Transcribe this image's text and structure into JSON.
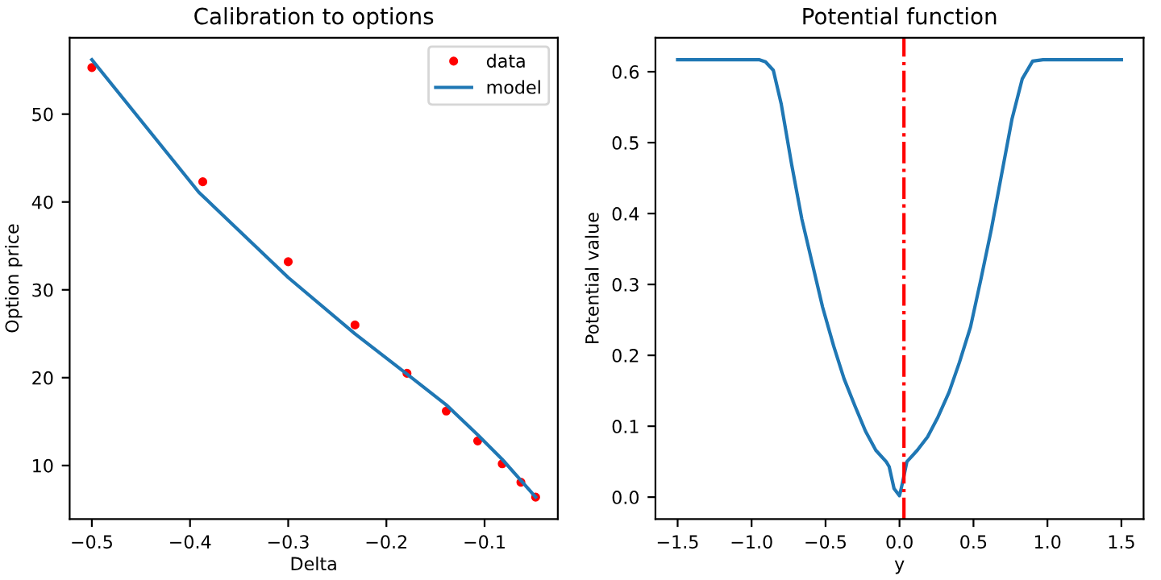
{
  "chart_data": [
    {
      "type": "scatter",
      "title": "Calibration to options",
      "xlabel": "Delta",
      "ylabel": "Option price",
      "xlim": [
        -0.5226,
        -0.0254
      ],
      "ylim": [
        3.9,
        58.7
      ],
      "xticks": [
        {
          "value": -0.5,
          "label": "−0.5"
        },
        {
          "value": -0.4,
          "label": "−0.4"
        },
        {
          "value": -0.3,
          "label": "−0.3"
        },
        {
          "value": -0.2,
          "label": "−0.2"
        },
        {
          "value": -0.1,
          "label": "−0.1"
        }
      ],
      "yticks": [
        10,
        20,
        30,
        40,
        50
      ],
      "legend": "top right",
      "grid": false,
      "series": [
        {
          "name": "data",
          "type": "scatter",
          "color": "#ff0000",
          "marker": "circle",
          "x": [
            -0.5,
            -0.387,
            -0.3,
            -0.232,
            -0.179,
            -0.139,
            -0.107,
            -0.082,
            -0.063,
            -0.048
          ],
          "values": [
            55.3,
            42.3,
            33.2,
            26.0,
            20.5,
            16.2,
            12.8,
            10.2,
            8.1,
            6.4
          ]
        },
        {
          "name": "model",
          "type": "line",
          "color": "#1f77b4",
          "marker": "none",
          "x": [
            -0.5,
            -0.391,
            -0.3,
            -0.232,
            -0.179,
            -0.139,
            -0.107,
            -0.082,
            -0.063,
            -0.048
          ],
          "values": [
            56.2,
            41.1,
            31.4,
            25.0,
            20.4,
            16.9,
            13.5,
            10.7,
            8.3,
            6.4
          ]
        }
      ]
    },
    {
      "type": "line",
      "title": "Potential function",
      "xlabel": "y",
      "ylabel": "Potential value",
      "xlim": [
        -1.65,
        1.65
      ],
      "ylim": [
        -0.031,
        0.648
      ],
      "xticks": [
        {
          "value": -1.5,
          "label": "−1.5"
        },
        {
          "value": -1.0,
          "label": "−1.0"
        },
        {
          "value": -0.5,
          "label": "−0.5"
        },
        {
          "value": 0.0,
          "label": "0.0"
        },
        {
          "value": 0.5,
          "label": "0.5"
        },
        {
          "value": 1.0,
          "label": "1.0"
        },
        {
          "value": 1.5,
          "label": "1.5"
        }
      ],
      "yticks": [
        {
          "value": 0.0,
          "label": "0.0"
        },
        0.1,
        0.2,
        0.3,
        0.4,
        0.5,
        0.6
      ],
      "grid": false,
      "ref_lines": [
        {
          "axis": "x",
          "value": 0.03,
          "color": "#ff0000",
          "line_style": "dashdot"
        }
      ],
      "series": [
        {
          "color": "#1f77b4",
          "x": [
            -1.5,
            -0.95,
            -0.906,
            -0.853,
            -0.8,
            -0.73,
            -0.66,
            -0.59,
            -0.52,
            -0.445,
            -0.375,
            -0.3,
            -0.23,
            -0.16,
            -0.09,
            -0.07,
            -0.037,
            0.0,
            0.02,
            0.05,
            0.12,
            0.19,
            0.26,
            0.335,
            0.405,
            0.48,
            0.55,
            0.62,
            0.69,
            0.76,
            0.83,
            0.9,
            0.97,
            1.5
          ],
          "values": [
            0.617,
            0.617,
            0.614,
            0.602,
            0.555,
            0.47,
            0.392,
            0.33,
            0.268,
            0.213,
            0.167,
            0.128,
            0.093,
            0.066,
            0.05,
            0.043,
            0.012,
            0.002,
            0.02,
            0.05,
            0.066,
            0.085,
            0.113,
            0.148,
            0.19,
            0.24,
            0.307,
            0.377,
            0.455,
            0.533,
            0.59,
            0.615,
            0.617,
            0.617
          ]
        }
      ]
    }
  ]
}
